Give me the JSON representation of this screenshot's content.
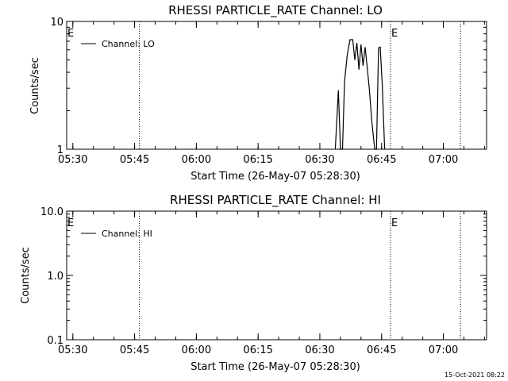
{
  "chart_data": [
    {
      "type": "line",
      "title": "RHESSI PARTICLE_RATE Channel: LO",
      "xlabel": "Start Time (26-May-07 05:28:30)",
      "ylabel": "Counts/sec",
      "yscale": "log",
      "xlim": [
        "05:28:30",
        "07:10:30"
      ],
      "ylim": [
        1,
        10
      ],
      "x_ticks": [
        "05:30",
        "05:45",
        "06:00",
        "06:15",
        "06:30",
        "06:45",
        "07:00"
      ],
      "y_ticks": [
        "1",
        "10"
      ],
      "legend": {
        "position": "top-left",
        "entries": [
          "Channel: LO"
        ]
      },
      "markers": [
        {
          "label": "E",
          "time": "05:28:30"
        },
        {
          "label": "",
          "time": "05:46:10"
        },
        {
          "label": "E",
          "time": "06:47:10"
        },
        {
          "label": "",
          "time": "07:04:10"
        }
      ],
      "series": [
        {
          "name": "Channel: LO",
          "x": [
            "06:33:45",
            "06:34:30",
            "06:35:00",
            "06:35:30",
            "06:36:00",
            "06:36:40",
            "06:37:20",
            "06:38:00",
            "06:38:30",
            "06:39:00",
            "06:39:30",
            "06:40:00",
            "06:40:30",
            "06:41:00",
            "06:41:30",
            "06:42:00",
            "06:42:40",
            "06:43:20",
            "06:43:45",
            "06:44:15",
            "06:44:40",
            "06:45:10",
            "06:45:45"
          ],
          "values": [
            1,
            2.9,
            1,
            1,
            3.4,
            5.5,
            7.2,
            7.2,
            5.0,
            6.8,
            4.2,
            6.6,
            4.5,
            6.3,
            4.4,
            3.0,
            1.6,
            1,
            1,
            6.2,
            6.3,
            3.2,
            1
          ]
        }
      ]
    },
    {
      "type": "line",
      "title": "RHESSI PARTICLE_RATE Channel: HI",
      "xlabel": "Start Time (26-May-07 05:28:30)",
      "ylabel": "Counts/sec",
      "yscale": "log",
      "xlim": [
        "05:28:30",
        "07:10:30"
      ],
      "ylim": [
        0.1,
        10
      ],
      "x_ticks": [
        "05:30",
        "05:45",
        "06:00",
        "06:15",
        "06:30",
        "06:45",
        "07:00"
      ],
      "y_ticks": [
        "0.1",
        "1.0",
        "10.0"
      ],
      "legend": {
        "position": "top-left",
        "entries": [
          "Channel: HI"
        ]
      },
      "markers": [
        {
          "label": "E",
          "time": "05:28:30"
        },
        {
          "label": "",
          "time": "05:46:10"
        },
        {
          "label": "E",
          "time": "06:47:10"
        },
        {
          "label": "",
          "time": "07:04:10"
        }
      ],
      "series": [
        {
          "name": "Channel: HI",
          "x": [],
          "values": []
        }
      ]
    }
  ],
  "footer": {
    "timestamp": "15-Oct-2021 08:22"
  }
}
